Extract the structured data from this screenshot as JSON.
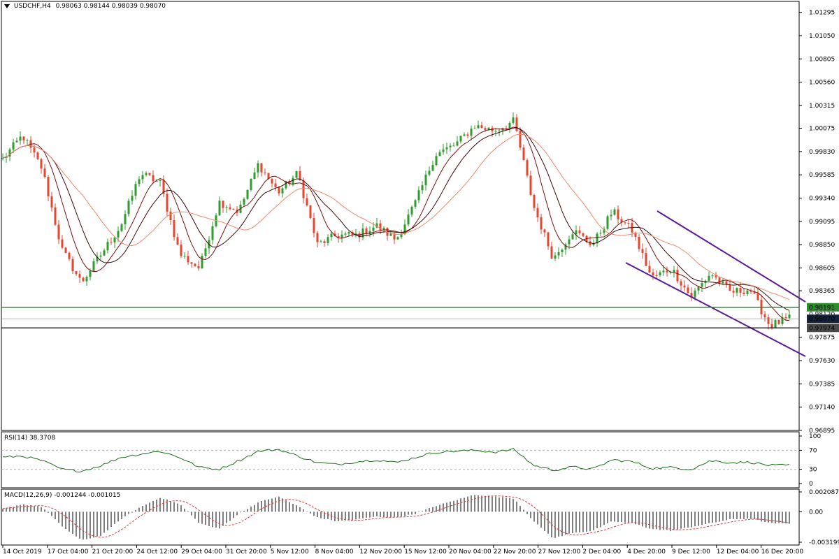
{
  "header": {
    "symbol": "USDCHF,H4",
    "ohlc": "0.98063 0.98144 0.98039 0.98070"
  },
  "colors": {
    "bull": "#2e9c2e",
    "bear": "#e6462d",
    "ma_fast": "#7a1010",
    "ma_mid": "#3b0a0a",
    "ma_slow": "#f08a6e",
    "channel": "#5a1a9a",
    "support": "#2e8b2e",
    "rsi": "#1a6e1a",
    "macd_signal": "#e03a3a"
  },
  "chart_data": [
    {
      "type": "candlestick",
      "title": "USDCHF,H4",
      "ylim": [
        0.96895,
        1.0141
      ],
      "y_ticks": [
        "1.01295",
        "1.01050",
        "1.00805",
        "1.00560",
        "1.00315",
        "1.00075",
        "0.99830",
        "0.99585",
        "0.99340",
        "0.99095",
        "0.98850",
        "0.98605",
        "0.98365",
        "0.97875",
        "0.97630",
        "0.97385",
        "0.97140",
        "0.96895"
      ],
      "x_ticks": [
        "14 Oct 2019",
        "17 Oct 04:00",
        "21 Oct 20:00",
        "24 Oct 12:00",
        "29 Oct 04:00",
        "31 Oct 20:00",
        "5 Nov 12:00",
        "8 Nov 04:00",
        "12 Nov 20:00",
        "15 Nov 12:00",
        "20 Nov 04:00",
        "22 Nov 20:00",
        "27 Nov 12:00",
        "2 Dec 04:00",
        "4 Dec 20:00",
        "9 Dec 12:00",
        "12 Dec 04:00",
        "16 Dec 20:00"
      ],
      "anchors": [
        0.9975,
        1.0,
        0.9965,
        0.988,
        0.9845,
        0.9875,
        0.9905,
        0.996,
        0.995,
        0.9875,
        0.986,
        0.993,
        0.992,
        0.997,
        0.994,
        0.996,
        0.9885,
        0.9895,
        0.9895,
        0.9905,
        0.989,
        0.993,
        0.998,
        0.999,
        1.001,
        1.0005,
        1.0015,
        0.9925,
        0.987,
        0.99,
        0.9885,
        0.992,
        0.99,
        0.985,
        0.986,
        0.983,
        0.9855,
        0.9835,
        0.9838,
        0.98,
        0.9807
      ],
      "price_levels": [
        {
          "label": "0.98191",
          "value": 0.98191,
          "kind": "support-line"
        },
        {
          "label": "0.98120",
          "value": 0.9812,
          "kind": "ask"
        },
        {
          "label": "0.98070",
          "value": 0.9807,
          "kind": "last"
        },
        {
          "label": "0.97974",
          "value": 0.97974,
          "kind": "line"
        }
      ]
    },
    {
      "type": "line",
      "title": "RSI(14) 38.3708",
      "ylim": [
        0,
        100
      ],
      "levels": [
        30,
        70
      ],
      "y_ticks": [
        "100",
        "70",
        "30",
        "0"
      ],
      "anchors": [
        55,
        58,
        48,
        30,
        26,
        38,
        55,
        62,
        68,
        55,
        34,
        30,
        48,
        68,
        72,
        58,
        44,
        40,
        46,
        50,
        44,
        55,
        66,
        68,
        70,
        66,
        72,
        38,
        28,
        35,
        30,
        50,
        46,
        32,
        34,
        30,
        48,
        44,
        45,
        38,
        38.37
      ]
    },
    {
      "type": "bar",
      "title": "MACD(12,26,9) -0.001244 -0.001015",
      "ylim": [
        -0.003199,
        0.002087
      ],
      "y_ticks": [
        "0.002087",
        "0.00",
        "-0.003199"
      ],
      "anchors": [
        0.0003,
        0.0008,
        0.0005,
        -0.0015,
        -0.003,
        -0.0025,
        -0.0008,
        0.0005,
        0.0015,
        0.0008,
        -0.0012,
        -0.0018,
        -0.0002,
        0.001,
        0.0016,
        0.0006,
        -0.0006,
        -0.001,
        -0.0008,
        -0.0005,
        -0.0006,
        -0.0002,
        0.0006,
        0.0012,
        0.0018,
        0.0016,
        0.0014,
        -0.001,
        -0.0028,
        -0.0022,
        -0.002,
        -0.001,
        -0.0012,
        -0.0018,
        -0.002,
        -0.0016,
        -0.0012,
        -0.0008,
        -0.0007,
        -0.0012,
        -0.001244
      ]
    }
  ]
}
